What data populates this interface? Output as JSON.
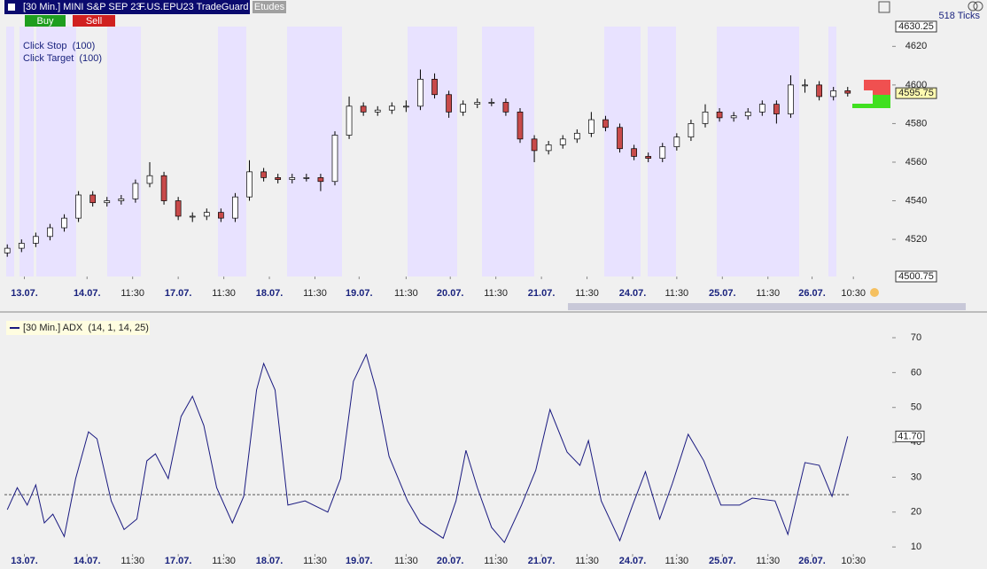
{
  "header": {
    "symbol": "[30 Min.] MINI S&P SEP 23",
    "account": "F.US.EPU23 TradeGuard",
    "etudes": "Etudes"
  },
  "buttons": {
    "buy": "Buy",
    "sell": "Sell"
  },
  "order_info": [
    "Click Stop  (100)",
    "Click Target  (100)"
  ],
  "ticks_count": "518 Ticks",
  "chart_data": [
    {
      "type": "candlestick",
      "up_color": "#ffffff",
      "down_color": "#c84a4a",
      "open": [
        4513,
        4515.4,
        4518,
        4521.5,
        4526,
        4531,
        4543,
        4539,
        4540,
        4541,
        4549,
        4553,
        4540,
        4532,
        4532,
        4534,
        4531,
        4542,
        4555,
        4552,
        4551,
        4552,
        4552,
        4550,
        4574,
        4589,
        4586,
        4587,
        4589,
        4589,
        4603,
        4595,
        4586,
        4590,
        4591,
        4591,
        4586,
        4572,
        4566,
        4569,
        4572,
        4575,
        4582,
        4578,
        4567,
        4563,
        4562,
        4568,
        4573,
        4580,
        4586,
        4583,
        4584,
        4586,
        4590,
        4585,
        4600,
        4600,
        4594,
        4597
      ],
      "high": [
        4517.4,
        4520,
        4523.5,
        4528,
        4533,
        4545,
        4545,
        4542,
        4543,
        4551,
        4560,
        4555,
        4542,
        4534,
        4536,
        4536,
        4544,
        4561,
        4557,
        4554,
        4554,
        4554,
        4554,
        4576,
        4594,
        4591,
        4589,
        4591,
        4592,
        4608,
        4606,
        4597,
        4592,
        4593,
        4593,
        4593,
        4588,
        4574,
        4571,
        4574,
        4577,
        4586,
        4584,
        4580,
        4569,
        4565,
        4570,
        4575,
        4582,
        4590,
        4588,
        4586,
        4588,
        4592,
        4592,
        4605,
        4603,
        4602,
        4599,
        4599
      ],
      "low": [
        4511,
        4513.4,
        4516,
        4519.5,
        4524,
        4529,
        4537,
        4537,
        4538,
        4539,
        4547,
        4538,
        4530,
        4529,
        4530,
        4529,
        4529,
        4540,
        4550,
        4549,
        4549,
        4550,
        4545,
        4548,
        4572,
        4584,
        4584,
        4585,
        4586,
        4587,
        4593,
        4583,
        4584,
        4588,
        4589,
        4584,
        4570,
        4560,
        4564,
        4567,
        4570,
        4573,
        4576,
        4565,
        4561,
        4560,
        4560,
        4566,
        4571,
        4578,
        4581,
        4581,
        4582,
        4584,
        4580,
        4583,
        4596,
        4592,
        4592,
        4594
      ],
      "close": [
        4515.4,
        4518,
        4521.5,
        4526,
        4531,
        4543,
        4539,
        4540,
        4541,
        4549,
        4553,
        4540,
        4532,
        4532,
        4534,
        4531,
        4542,
        4555,
        4552,
        4551,
        4552,
        4552,
        4550,
        4574,
        4589,
        4586,
        4587,
        4589,
        4589,
        4603,
        4595,
        4586,
        4590,
        4591,
        4591,
        4586,
        4572,
        4566,
        4569,
        4572,
        4575,
        4582,
        4578,
        4567,
        4563,
        4562,
        4568,
        4573,
        4580,
        4586,
        4583,
        4584,
        4586,
        4590,
        4585,
        4600,
        4600,
        4594,
        4597,
        4595.75
      ],
      "xlim": [
        -0.2,
        62
      ],
      "xticks": [
        {
          "value": 1.2,
          "label": "13.07."
        },
        {
          "value": 5.6,
          "label": "14.07."
        },
        {
          "value": 8.8,
          "label": "11:30"
        },
        {
          "value": 12,
          "label": "17.07."
        },
        {
          "value": 15.2,
          "label": "11:30"
        },
        {
          "value": 18.4,
          "label": "18.07."
        },
        {
          "value": 21.6,
          "label": "11:30"
        },
        {
          "value": 24.7,
          "label": "19.07."
        },
        {
          "value": 28,
          "label": "11:30"
        },
        {
          "value": 31.1,
          "label": "20.07."
        },
        {
          "value": 34.3,
          "label": "11:30"
        },
        {
          "value": 37.5,
          "label": "21.07."
        },
        {
          "value": 40.7,
          "label": "11:30"
        },
        {
          "value": 43.9,
          "label": "24.07."
        },
        {
          "value": 47,
          "label": "11:30"
        },
        {
          "value": 50.2,
          "label": "25.07."
        },
        {
          "value": 53.4,
          "label": "11:30"
        },
        {
          "value": 56.5,
          "label": "26.07."
        },
        {
          "value": 59.4,
          "label": "10:30"
        }
      ],
      "ylim": [
        4500.75,
        4630.25
      ],
      "yticks": [
        4520,
        4540,
        4560,
        4580,
        4600,
        4620
      ]
    },
    {
      "type": "line",
      "title": "[30 Min.] ADX  (14, 1, 14, 25)",
      "color": "#1a1a80",
      "threshold": 25,
      "last_value_label": "41.70",
      "x": [
        0,
        0.7,
        1.4,
        2,
        2.6,
        3.2,
        4,
        4.8,
        5.7,
        6.3,
        7.3,
        8.2,
        9.1,
        9.8,
        10.4,
        11.3,
        12.2,
        13,
        13.8,
        14.7,
        15.8,
        16.6,
        17.5,
        18,
        18.8,
        19.7,
        20.9,
        22.5,
        23.4,
        24.3,
        25.2,
        25.9,
        26.8,
        28.1,
        29,
        30.6,
        31.5,
        32.2,
        33,
        34,
        34.9,
        36.1,
        37.1,
        38.1,
        39.3,
        40.2,
        40.8,
        41.7,
        43,
        43.9,
        44.8,
        45.8,
        46.7,
        47.8,
        48.9,
        50.1,
        51.4,
        52.3,
        53.9,
        54.8,
        56,
        57,
        57.9,
        59
      ],
      "values": [
        20.7,
        27,
        22,
        27.8,
        16.9,
        19.4,
        13,
        29.6,
        43,
        41,
        23.2,
        15,
        18,
        34.7,
        36.7,
        29.6,
        47.4,
        53.2,
        44.8,
        27,
        16.9,
        24.5,
        55,
        62.6,
        55,
        22,
        23.2,
        20,
        29.6,
        57.5,
        65.2,
        55,
        36,
        23.2,
        16.9,
        12.5,
        23.2,
        37.7,
        27,
        15.6,
        11.3,
        22,
        32,
        49.4,
        37.2,
        33.4,
        40.5,
        23.2,
        11.8,
        22,
        31.6,
        18,
        28.3,
        42.3,
        34.7,
        22,
        22,
        24,
        23.2,
        13.6,
        34.2,
        33.4,
        24.5,
        41.7
      ],
      "xlim": [
        -0.2,
        62
      ],
      "xticks": [
        {
          "value": 1.2,
          "label": "13.07."
        },
        {
          "value": 5.6,
          "label": "14.07."
        },
        {
          "value": 8.8,
          "label": "11:30"
        },
        {
          "value": 12,
          "label": "17.07."
        },
        {
          "value": 15.2,
          "label": "11:30"
        },
        {
          "value": 18.4,
          "label": "18.07."
        },
        {
          "value": 21.6,
          "label": "11:30"
        },
        {
          "value": 24.7,
          "label": "19.07."
        },
        {
          "value": 28,
          "label": "11:30"
        },
        {
          "value": 31.1,
          "label": "20.07."
        },
        {
          "value": 34.3,
          "label": "11:30"
        },
        {
          "value": 37.5,
          "label": "21.07."
        },
        {
          "value": 40.7,
          "label": "11:30"
        },
        {
          "value": 43.9,
          "label": "24.07."
        },
        {
          "value": 47,
          "label": "11:30"
        },
        {
          "value": 50.2,
          "label": "25.07."
        },
        {
          "value": 53.4,
          "label": "11:30"
        },
        {
          "value": 56.5,
          "label": "26.07."
        },
        {
          "value": 59.4,
          "label": "10:30"
        }
      ],
      "ylim": [
        8,
        72.8
      ],
      "yticks": [
        10,
        20,
        30,
        40,
        50,
        60,
        70
      ]
    }
  ]
}
